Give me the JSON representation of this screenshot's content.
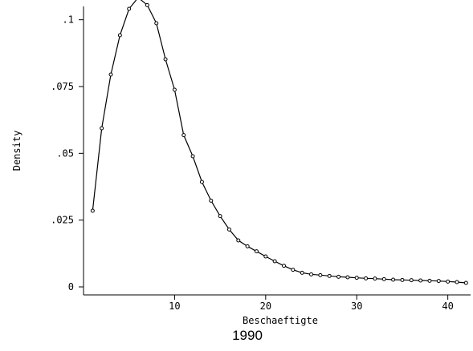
{
  "chart_data": {
    "type": "line",
    "title": "",
    "caption": "1990",
    "xlabel": "Beschaeftigte",
    "ylabel": "Density",
    "xlim": [
      0,
      42.5
    ],
    "ylim": [
      -0.003,
      0.105
    ],
    "x_ticks": [
      10,
      20,
      30,
      40
    ],
    "x_tick_labels": [
      "10",
      "20",
      "30",
      "40"
    ],
    "y_ticks": [
      0,
      0.025,
      0.05,
      0.075,
      0.1
    ],
    "y_tick_labels": [
      "0",
      ".025",
      ".05",
      ".075",
      ".1"
    ],
    "grid": false,
    "legend": "none",
    "markers": "hollow-circle",
    "colors": {
      "line": "#000000",
      "axis": "#000000",
      "background": "#ffffff"
    },
    "series": [
      {
        "x": [
          1,
          2,
          3,
          4,
          5,
          6,
          7,
          8,
          9,
          10,
          11,
          12,
          13,
          14,
          15,
          16,
          17,
          18,
          19,
          20,
          21,
          22,
          23,
          24,
          25,
          26,
          27,
          28,
          29,
          30,
          31,
          32,
          33,
          34,
          35,
          36,
          37,
          38,
          39,
          40,
          41,
          42
        ],
        "values": [
          0.0285,
          0.0594,
          0.0795,
          0.0942,
          0.1041,
          0.1083,
          0.1055,
          0.0987,
          0.0852,
          0.0738,
          0.0568,
          0.0489,
          0.0393,
          0.0323,
          0.0265,
          0.0215,
          0.0174,
          0.0152,
          0.0133,
          0.0114,
          0.0096,
          0.0079,
          0.0064,
          0.0053,
          0.0047,
          0.0044,
          0.0041,
          0.0038,
          0.0036,
          0.0034,
          0.0032,
          0.0031,
          0.0029,
          0.0027,
          0.0026,
          0.0025,
          0.0024,
          0.0023,
          0.0022,
          0.002,
          0.0018,
          0.0015
        ]
      }
    ]
  }
}
